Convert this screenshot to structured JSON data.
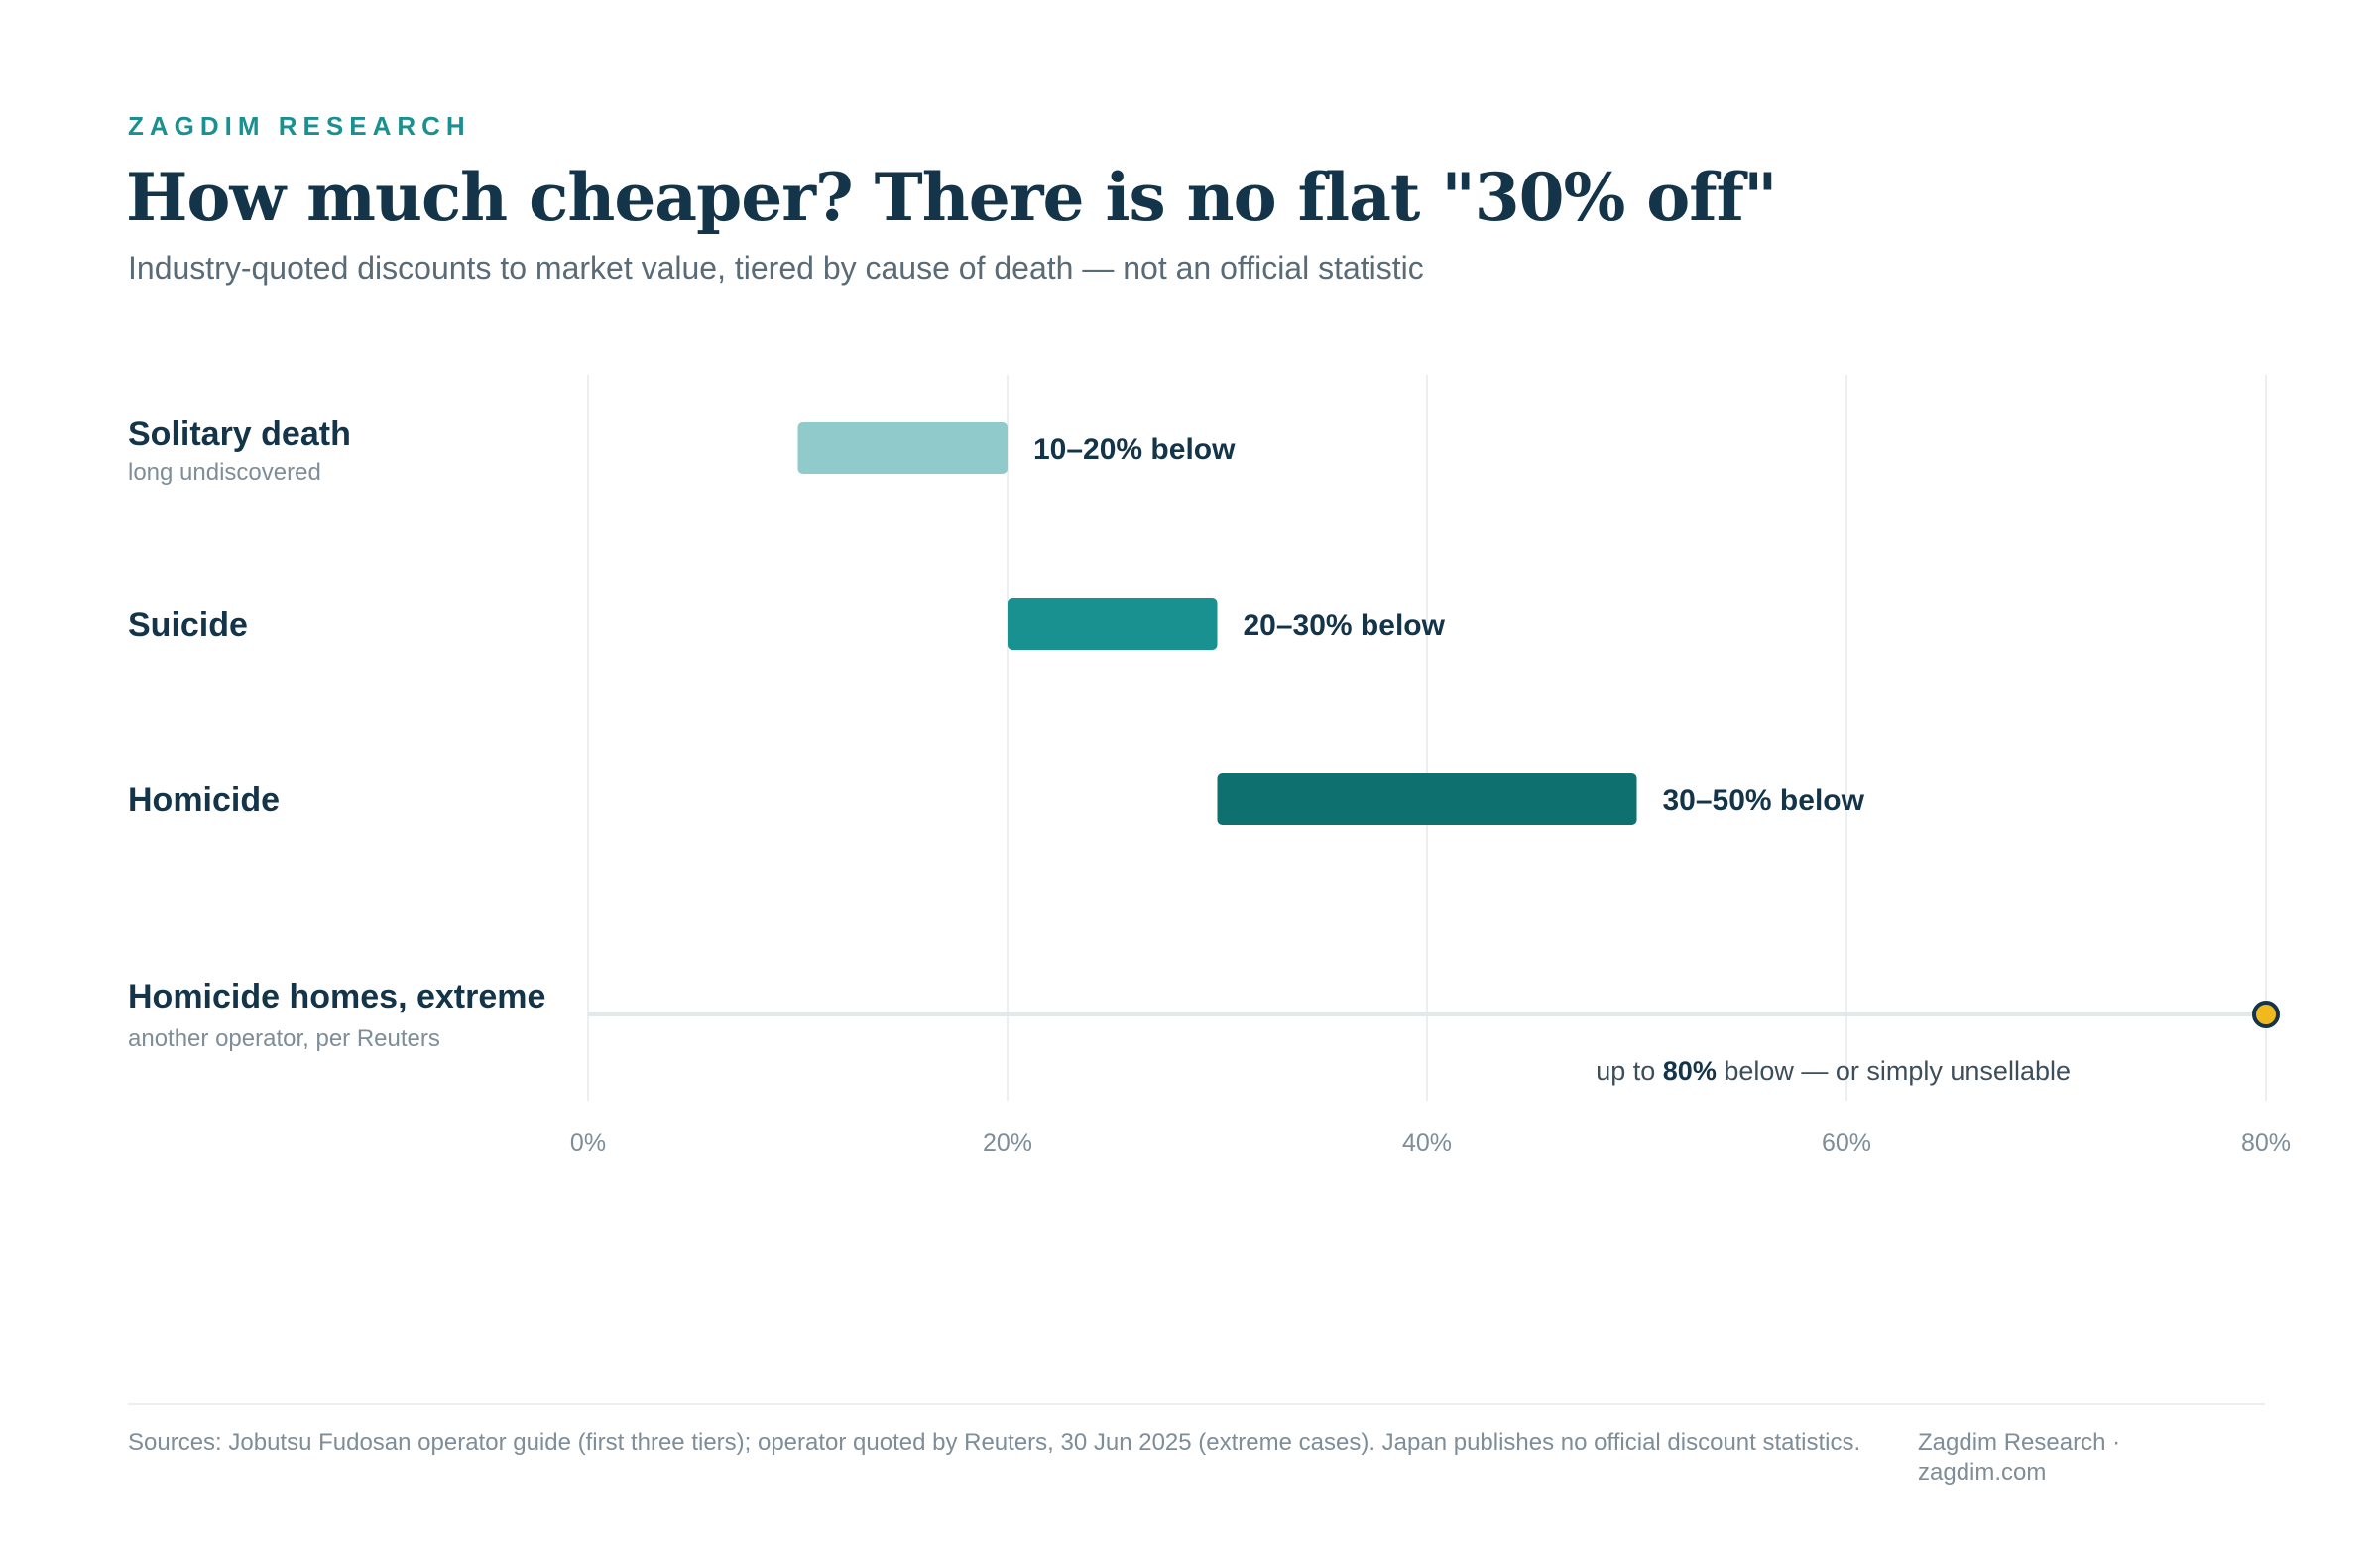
{
  "brand": "ZAGDIM RESEARCH",
  "title": "How much cheaper? There is no flat \"30% off\"",
  "subtitle": "Industry-quoted discounts to market value, tiered by cause of death — not an official statistic",
  "chart_data": {
    "type": "bar",
    "orientation": "horizontal-range",
    "xlim": [
      0,
      80
    ],
    "x_ticks": [
      "0%",
      "20%",
      "40%",
      "60%",
      "80%"
    ],
    "x_tick_values": [
      0,
      20,
      40,
      60,
      80
    ],
    "grid": true,
    "categories": [
      {
        "label": "Solitary death",
        "sublabel": "long undiscovered",
        "low": 10,
        "high": 20,
        "value_label": "10–20% below",
        "color": "#90cacb"
      },
      {
        "label": "Suicide",
        "sublabel": "",
        "low": 20,
        "high": 30,
        "value_label": "20–30% below",
        "color": "#199191"
      },
      {
        "label": "Homicide",
        "sublabel": "",
        "low": 30,
        "high": 50,
        "value_label": "30–50% below",
        "color": "#0f7070"
      }
    ],
    "extreme": {
      "label": "Homicide homes, extreme",
      "sublabel": "another operator, per Reuters",
      "value": 80,
      "color": "#f0b91e",
      "annotation_prefix": "up to ",
      "annotation_value": "80%",
      "annotation_suffix": " below — or simply unsellable"
    }
  },
  "footer": {
    "sources": "Sources: Jobutsu Fudosan operator guide (first three tiers); operator quoted by Reuters, 30 Jun 2025 (extreme cases). Japan publishes no official discount statistics.",
    "credit": "Zagdim Research · zagdim.com"
  }
}
